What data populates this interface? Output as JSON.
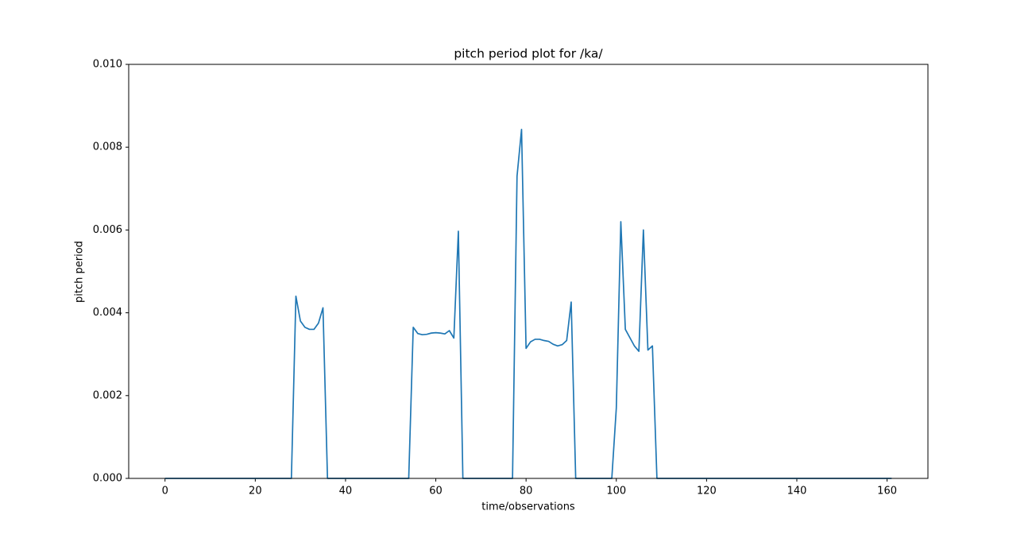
{
  "chart_data": {
    "type": "line",
    "title": "pitch period plot for /ka/",
    "xlabel": "time/observations",
    "ylabel": "pitch period",
    "x": [
      0,
      1,
      2,
      3,
      4,
      5,
      6,
      7,
      8,
      9,
      10,
      11,
      12,
      13,
      14,
      15,
      16,
      17,
      18,
      19,
      20,
      21,
      22,
      23,
      24,
      25,
      26,
      27,
      28,
      29,
      30,
      31,
      32,
      33,
      34,
      35,
      36,
      37,
      38,
      39,
      40,
      41,
      42,
      43,
      44,
      45,
      46,
      47,
      48,
      49,
      50,
      51,
      52,
      53,
      54,
      55,
      56,
      57,
      58,
      59,
      60,
      61,
      62,
      63,
      64,
      65,
      66,
      67,
      68,
      69,
      70,
      71,
      72,
      73,
      74,
      75,
      76,
      77,
      78,
      79,
      80,
      81,
      82,
      83,
      84,
      85,
      86,
      87,
      88,
      89,
      90,
      91,
      92,
      93,
      94,
      95,
      96,
      97,
      98,
      99,
      100,
      101,
      102,
      103,
      104,
      105,
      106,
      107,
      108,
      109,
      110,
      111,
      112,
      113,
      114,
      115,
      116,
      117,
      118,
      119,
      120,
      121,
      122,
      123,
      124,
      125,
      126,
      127,
      128,
      129,
      130,
      131,
      132,
      133,
      134,
      135,
      136,
      137,
      138,
      139,
      140,
      141,
      142,
      143,
      144,
      145,
      146,
      147,
      148,
      149,
      150,
      151,
      152,
      153,
      154,
      155,
      156,
      157,
      158,
      159,
      160,
      161
    ],
    "series": [
      {
        "color": "#1f77b4",
        "values": [
          0,
          0,
          0,
          0,
          0,
          0,
          0,
          0,
          0,
          0,
          0,
          0,
          0,
          0,
          0,
          0,
          0,
          0,
          0,
          0,
          0,
          0,
          0,
          0,
          0,
          0,
          0,
          0,
          0,
          0.0044,
          0.0038,
          0.00365,
          0.0036,
          0.0036,
          0.00375,
          0.00412,
          0,
          0,
          0,
          0,
          0,
          0,
          0,
          0,
          0,
          0,
          0,
          0,
          0,
          0,
          0,
          0,
          0,
          0,
          0,
          0.00365,
          0.0035,
          0.00347,
          0.00348,
          0.00351,
          0.00352,
          0.00351,
          0.00349,
          0.00357,
          0.00339,
          0.00597,
          0,
          0,
          0,
          0,
          0,
          0,
          0,
          0,
          0,
          0,
          0,
          0,
          0.0073,
          0.00843,
          0.00314,
          0.0033,
          0.00336,
          0.00336,
          0.00333,
          0.00331,
          0.00324,
          0.0032,
          0.00323,
          0.00333,
          0.00426,
          0,
          0,
          0,
          0,
          0,
          0,
          0,
          0,
          0,
          0.0017,
          0.0062,
          0.0036,
          0.0034,
          0.0032,
          0.00307,
          0.006,
          0.0031,
          0.0032,
          0,
          0,
          0,
          0,
          0,
          0,
          0,
          0,
          0,
          0,
          0,
          0,
          0,
          0,
          0,
          0,
          0,
          0,
          0,
          0,
          0,
          0,
          0,
          0,
          0,
          0,
          0,
          0,
          0,
          0,
          0,
          0,
          0,
          0,
          0,
          0,
          0,
          0,
          0,
          0,
          0,
          0,
          0,
          0,
          0,
          0,
          0,
          0,
          0,
          0,
          0,
          0,
          0
        ]
      }
    ],
    "xlim": [
      -8.05,
      169.05
    ],
    "xticks": [
      0,
      20,
      40,
      60,
      80,
      100,
      120,
      140,
      160
    ],
    "ylim": [
      0,
      0.01
    ],
    "yticks": [
      {
        "value": 0,
        "label": "0.000"
      },
      {
        "value": 0.002,
        "label": "0.002"
      },
      {
        "value": 0.004,
        "label": "0.004"
      },
      {
        "value": 0.006,
        "label": "0.006"
      },
      {
        "value": 0.008,
        "label": "0.008"
      },
      {
        "value": 0.01,
        "label": "0.010"
      }
    ],
    "grid": false
  }
}
